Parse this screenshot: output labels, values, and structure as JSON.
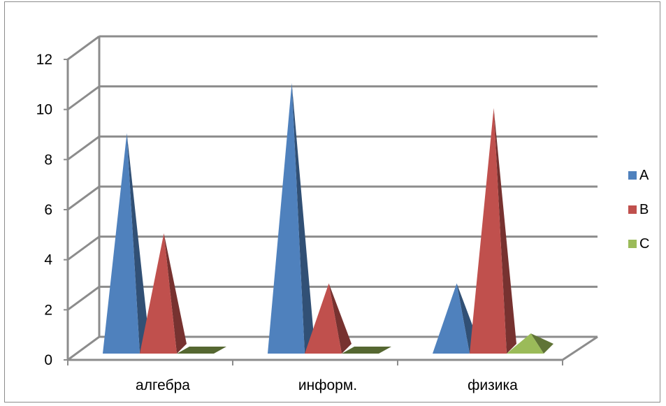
{
  "chart_data": {
    "type": "bar",
    "subtype": "3d-pyramid",
    "title": "",
    "xlabel": "",
    "ylabel": "",
    "categories": [
      "алгебра",
      "информ.",
      "физика"
    ],
    "series": [
      {
        "name": "A",
        "color": "#4f81bd",
        "values": [
          9,
          11,
          3
        ]
      },
      {
        "name": "B",
        "color": "#c0504d",
        "values": [
          5,
          3,
          10
        ]
      },
      {
        "name": "C",
        "color": "#9bbb59",
        "values": [
          0,
          0,
          1
        ]
      }
    ],
    "ylim": [
      0,
      12
    ],
    "yticks": [
      "0",
      "2",
      "4",
      "6",
      "8",
      "10",
      "12"
    ],
    "grid": true,
    "legend": "right"
  }
}
